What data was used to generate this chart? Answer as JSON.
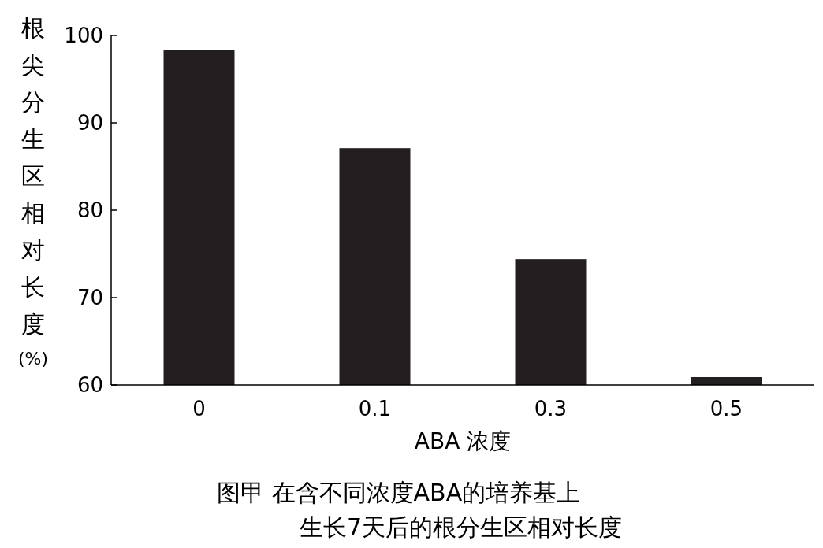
{
  "chart_data": {
    "type": "bar",
    "categories": [
      "0",
      "0.1",
      "0.3",
      "0.5"
    ],
    "values": [
      98.3,
      87.1,
      74.4,
      60.9
    ],
    "color": "#231f20",
    "ylim": [
      60,
      100
    ],
    "yticks": [
      60,
      70,
      80,
      90,
      100
    ],
    "grid": false,
    "xlabel": "ABA 浓度",
    "ylabel": "根尖分生区相对长度(%)",
    "annotations": [
      "图甲 在含不同浓度ABA的培养基上",
      "生长7天后的根分生区相对长度"
    ]
  }
}
